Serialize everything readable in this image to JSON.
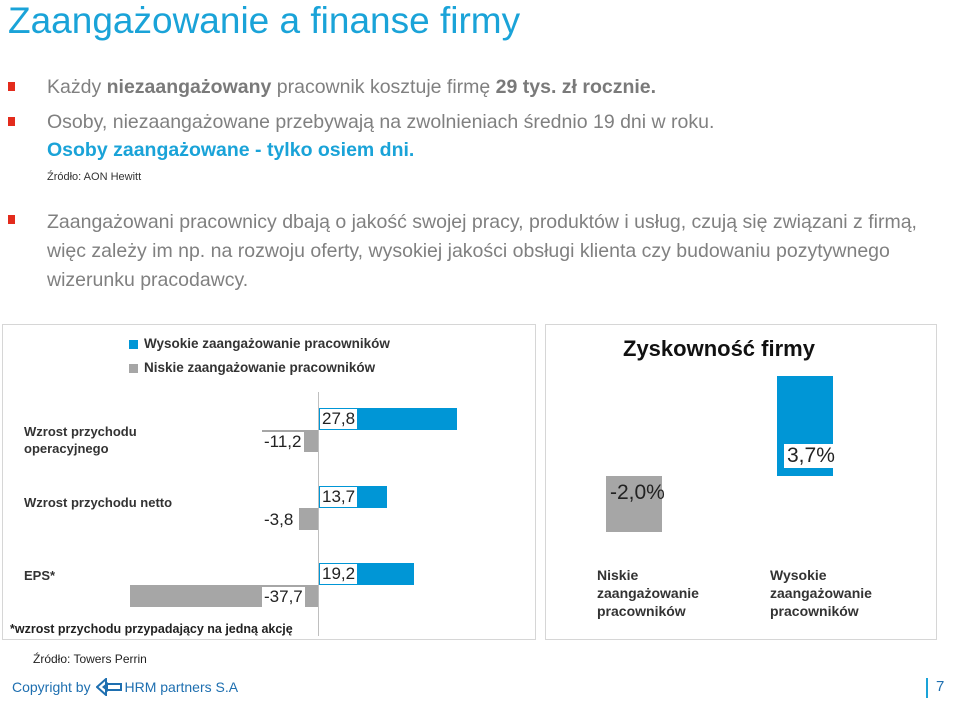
{
  "title": "Zaangażowanie a finanse firmy",
  "bullets": {
    "b1_pre": "Każdy ",
    "b1_bold": "niezaangażowany",
    "b1_mid": " pracownik kosztuje firmę ",
    "b1_bold2": "29 tys. zł rocznie.",
    "b2_line1": "Osoby, niezaangażowane przebywają na zwolnieniach średnio 19 dni w roku.",
    "b2_line2": "Osoby zaangażowane - tylko osiem dni.",
    "source1": "Źródło: AON Hewitt",
    "b3": "Zaangażowani pracownicy dbają o jakość swojej pracy, produktów i usług, czują się związani z firmą, więc zależy im np. na rozwoju oferty, wysokiej jakości obsługi klienta czy budowaniu pozytywnego wizerunku pracodawcy."
  },
  "left_chart": {
    "legend_high": "Wysokie zaangażowanie pracowników",
    "legend_low": "Niskie zaangażowanie pracowników",
    "footnote": "*wzrost przychodu przypadający na jedną akcję",
    "color_high": "#0096d6",
    "color_low": "#a6a6a6"
  },
  "right_chart": {
    "title": "Zyskowność firmy",
    "cat_low": "Niskie zaangażowanie pracowników",
    "cat_high": "Wysokie zaangażowanie pracowników"
  },
  "chart_data": [
    {
      "type": "bar",
      "orientation": "horizontal",
      "categories": [
        "Wzrost przychodu operacyjnego",
        "Wzrost przychodu netto",
        "EPS*"
      ],
      "series": [
        {
          "name": "Wysokie zaangażowanie pracowników",
          "values": [
            27.8,
            13.7,
            19.2
          ],
          "labels": [
            "27,8",
            "13,7",
            "19,2"
          ]
        },
        {
          "name": "Niskie zaangażowanie pracowników",
          "values": [
            -11.2,
            -3.8,
            -37.7
          ],
          "labels": [
            "-11,2",
            "-3,8",
            "-37,7"
          ]
        }
      ]
    },
    {
      "type": "bar",
      "title": "Zyskowność firmy",
      "categories": [
        "Niskie zaangażowanie pracowników",
        "Wysokie zaangażowanie pracowników"
      ],
      "values": [
        -2.0,
        3.7
      ],
      "labels": [
        "-2,0%",
        "3,7%"
      ]
    }
  ],
  "footer": {
    "source2": "Źródło: Towers Perrin",
    "copyright_pre": "Copyright by",
    "copyright_post": "HRM partners S.A",
    "page": "7"
  }
}
